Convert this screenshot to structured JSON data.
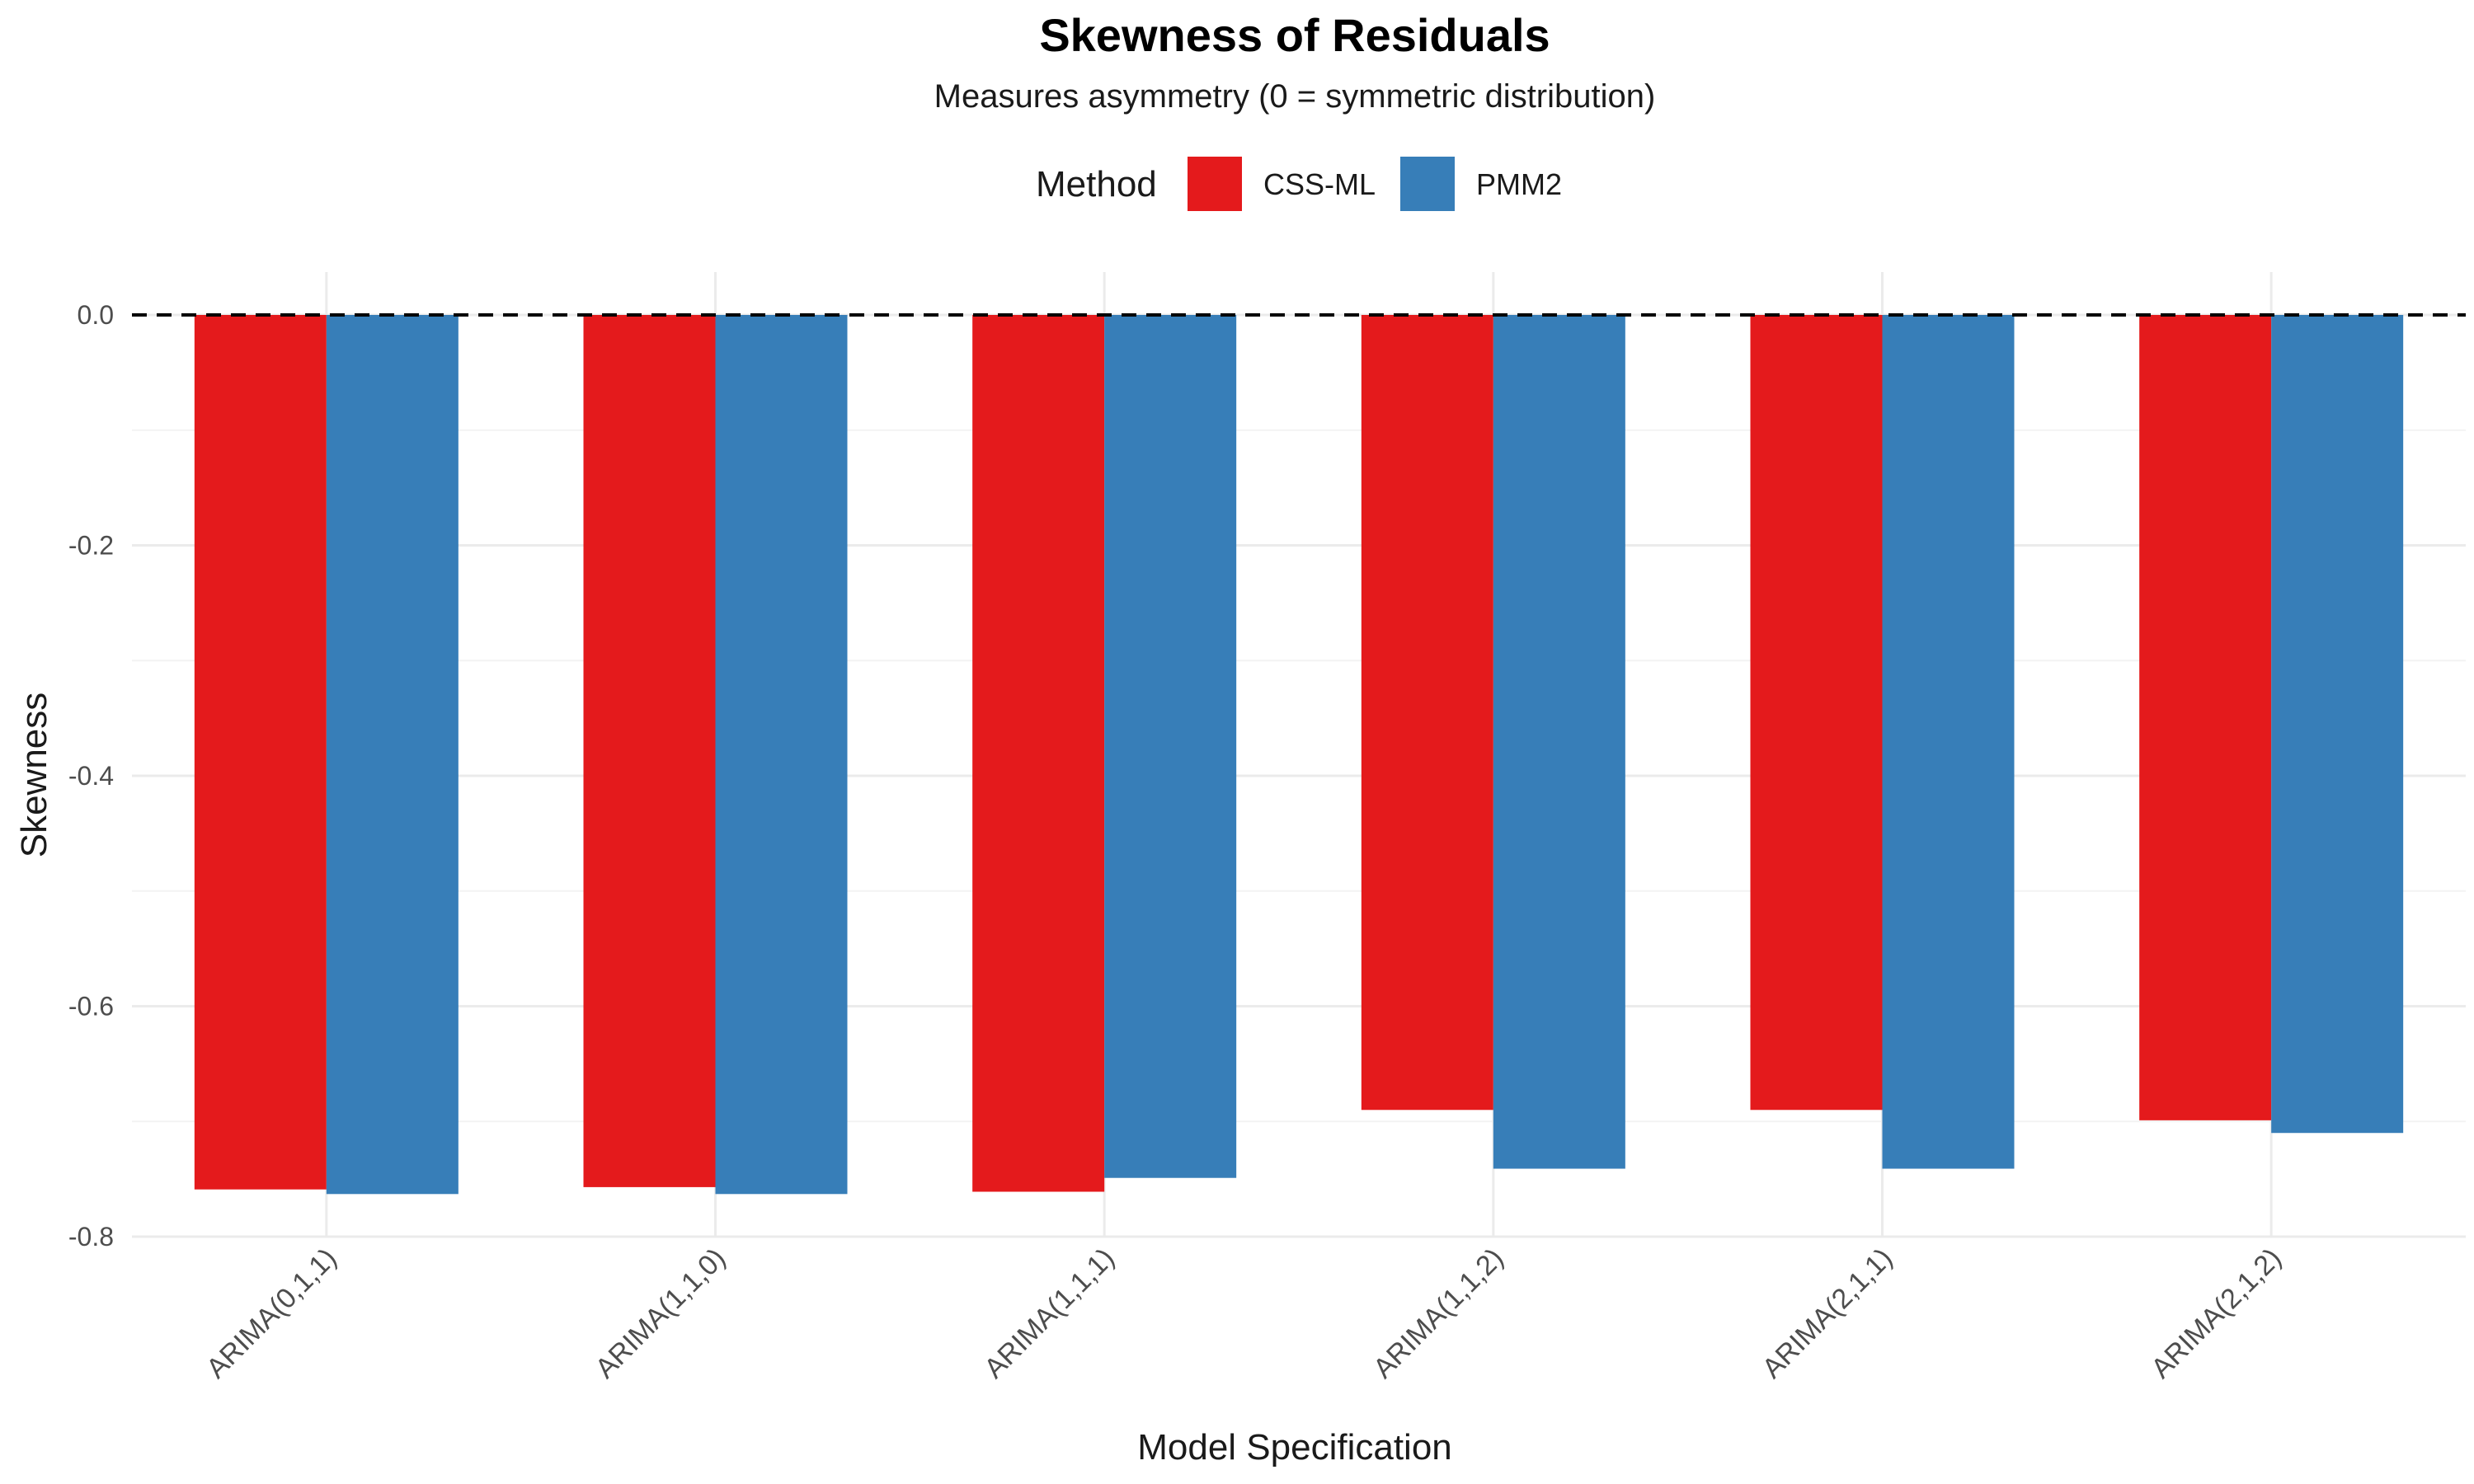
{
  "chart_data": {
    "type": "bar",
    "title": "Skewness of Residuals",
    "subtitle": "Measures asymmetry (0 = symmetric distribution)",
    "xlabel": "Model Specification",
    "ylabel": "Skewness",
    "categories": [
      "ARIMA(0,1,1)",
      "ARIMA(1,1,0)",
      "ARIMA(1,1,1)",
      "ARIMA(1,1,2)",
      "ARIMA(2,1,1)",
      "ARIMA(2,1,2)"
    ],
    "series": [
      {
        "name": "CSS-ML",
        "color": "#E41A1C",
        "values": [
          -0.759,
          -0.757,
          -0.761,
          -0.69,
          -0.69,
          -0.699
        ]
      },
      {
        "name": "PMM2",
        "color": "#377EB8",
        "values": [
          -0.763,
          -0.763,
          -0.749,
          -0.741,
          -0.741,
          -0.71
        ]
      }
    ],
    "ylim": [
      -0.8,
      0.0
    ],
    "yticks": [
      0.0,
      -0.2,
      -0.4,
      -0.6,
      -0.8
    ],
    "ytick_labels": [
      "0.0",
      "-0.2",
      "-0.4",
      "-0.6",
      "-0.8"
    ],
    "reference_line": {
      "y": 0.0,
      "style": "dashed"
    },
    "legend": {
      "title": "Method",
      "position": "top"
    },
    "grid": true
  }
}
